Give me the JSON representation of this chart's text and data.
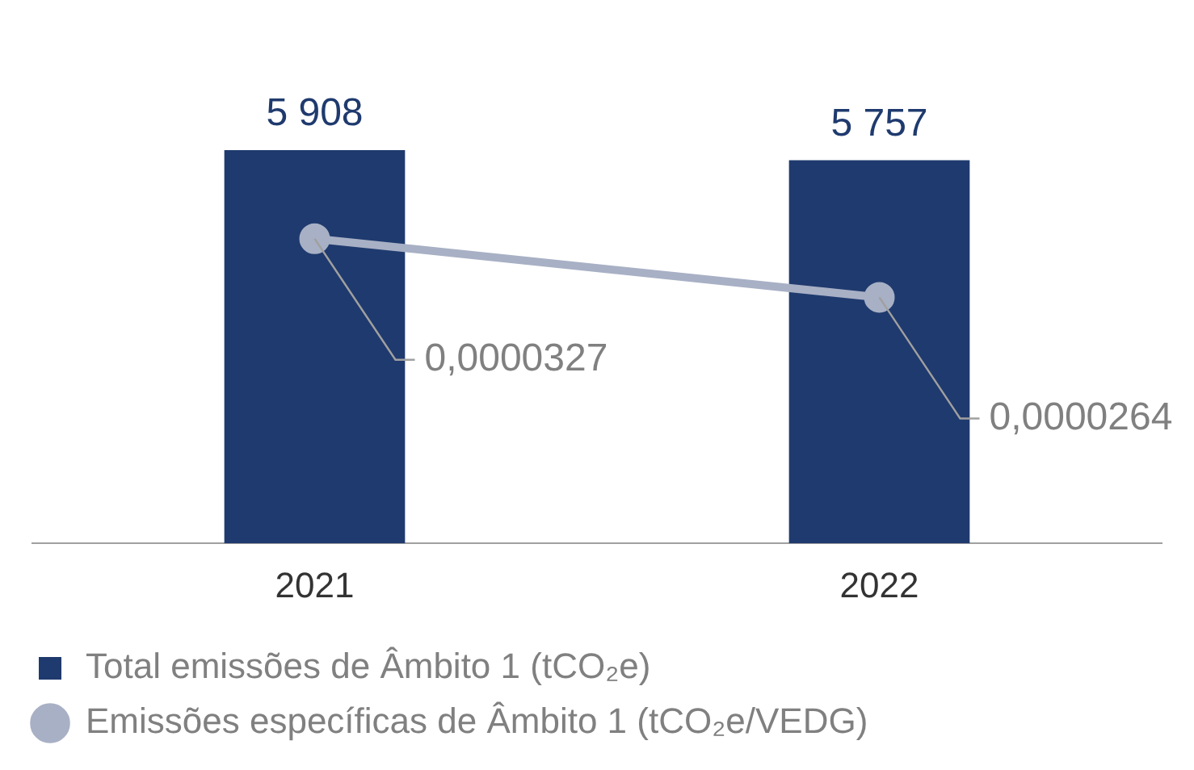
{
  "chart_data": {
    "type": "bar",
    "categories": [
      "2021",
      "2022"
    ],
    "series": [
      {
        "name": "Total emissões de Âmbito 1 (tCO₂e)",
        "type": "bar",
        "color": "#1f3a6e",
        "values": [
          5908,
          5757
        ],
        "value_labels": [
          "5 908",
          "5 757"
        ]
      },
      {
        "name": "Emissões específicas de Âmbito 1 (tCO₂e/VEDG)",
        "type": "line",
        "axis": "y2",
        "color": "#a8b0c5",
        "values": [
          3.27e-05,
          2.64e-05
        ],
        "value_labels": [
          "0,0000327",
          "0,0000264"
        ],
        "marker": "circle",
        "line_style": "solid"
      }
    ],
    "tick_labels": "x",
    "grid": false,
    "legend": "bottom"
  }
}
